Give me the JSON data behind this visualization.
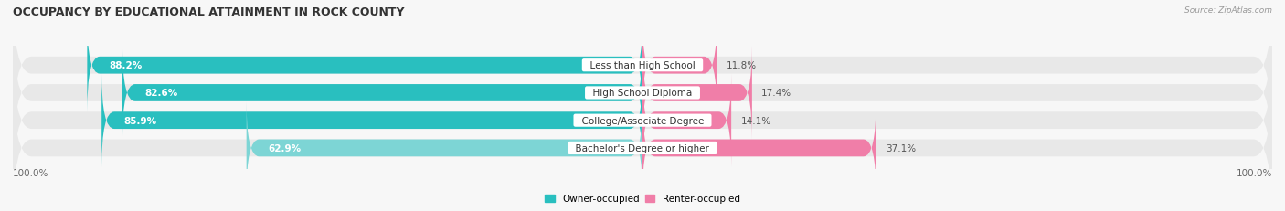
{
  "title": "OCCUPANCY BY EDUCATIONAL ATTAINMENT IN ROCK COUNTY",
  "source": "Source: ZipAtlas.com",
  "categories": [
    "Less than High School",
    "High School Diploma",
    "College/Associate Degree",
    "Bachelor's Degree or higher"
  ],
  "owner_pct": [
    88.2,
    82.6,
    85.9,
    62.9
  ],
  "renter_pct": [
    11.8,
    17.4,
    14.1,
    37.1
  ],
  "owner_color": "#29BFBF",
  "owner_color_light": "#7DD5D5",
  "renter_color": "#F07EA8",
  "bar_bg_color": "#E8E8E8",
  "bar_bg_color2": "#F0F0F0",
  "background_color": "#F7F7F7",
  "title_fontsize": 9,
  "label_fontsize": 7.5,
  "cat_fontsize": 7.5,
  "tick_fontsize": 7.5,
  "bar_height": 0.62,
  "owner_label": "Owner-occupied",
  "renter_label": "Renter-occupied",
  "axis_label_left": "100.0%",
  "axis_label_right": "100.0%",
  "use_light_color": [
    false,
    false,
    false,
    true
  ]
}
